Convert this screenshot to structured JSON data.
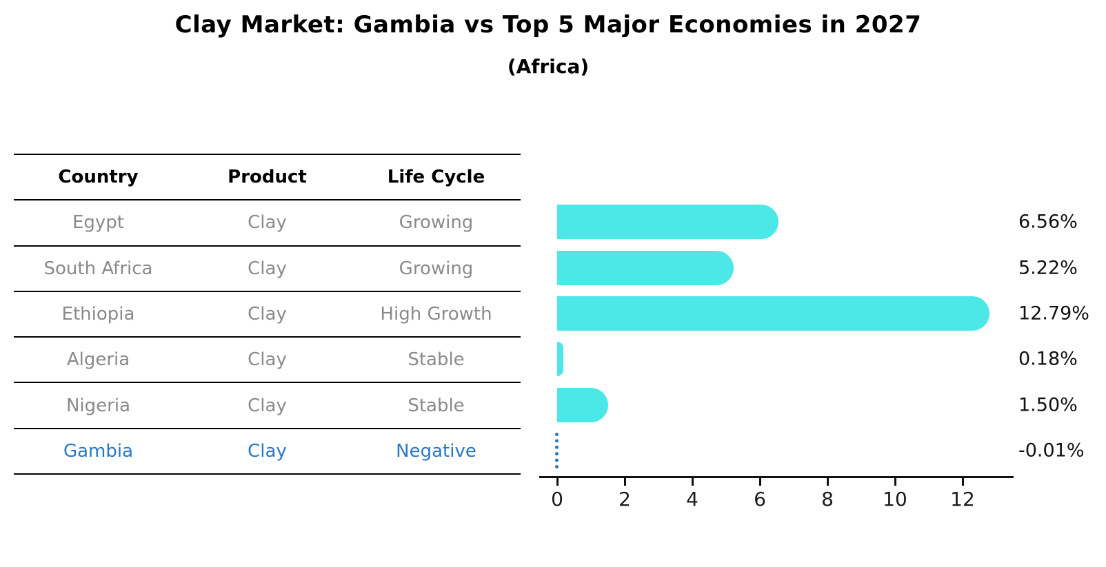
{
  "title": "Clay Market: Gambia vs Top 5 Major Economies in 2027",
  "subtitle": "(Africa)",
  "table": {
    "headers": [
      "Country",
      "Product",
      "Life Cycle"
    ],
    "rows": [
      {
        "country": "Egypt",
        "product": "Clay",
        "life_cycle": "Growing",
        "highlight": false
      },
      {
        "country": "South Africa",
        "product": "Clay",
        "life_cycle": "Growing",
        "highlight": false
      },
      {
        "country": "Ethiopia",
        "product": "Clay",
        "life_cycle": "High Growth",
        "highlight": false
      },
      {
        "country": "Algeria",
        "product": "Clay",
        "life_cycle": "Stable",
        "highlight": false
      },
      {
        "country": "Nigeria",
        "product": "Clay",
        "life_cycle": "Stable",
        "highlight": false
      },
      {
        "country": "Gambia",
        "product": "Clay",
        "life_cycle": "Negative",
        "highlight": true
      }
    ]
  },
  "chart_data": {
    "type": "bar",
    "orientation": "horizontal",
    "title": "Clay Market: Gambia vs Top 5 Major Economies in 2027",
    "subtitle": "(Africa)",
    "categories": [
      "Egypt",
      "South Africa",
      "Ethiopia",
      "Algeria",
      "Nigeria",
      "Gambia"
    ],
    "values": [
      6.56,
      5.22,
      12.79,
      0.18,
      1.5,
      -0.01
    ],
    "value_labels": [
      "6.56%",
      "5.22%",
      "12.79%",
      "0.18%",
      "1.50%",
      "-0.01%"
    ],
    "xticks": [
      0,
      2,
      4,
      6,
      8,
      10,
      12
    ],
    "xlim": [
      0,
      13.4
    ],
    "grid": false,
    "legend_position": "none",
    "bar_color": "#4be8e7",
    "highlight_color": "#2878c8",
    "gambia_style": "dotted-zero-line"
  },
  "colors": {
    "bar_cyan": "#4be8e7",
    "gambia_blue": "#2878c8",
    "table_text_gray": "#8a8a8a",
    "axis_black": "#111111"
  }
}
